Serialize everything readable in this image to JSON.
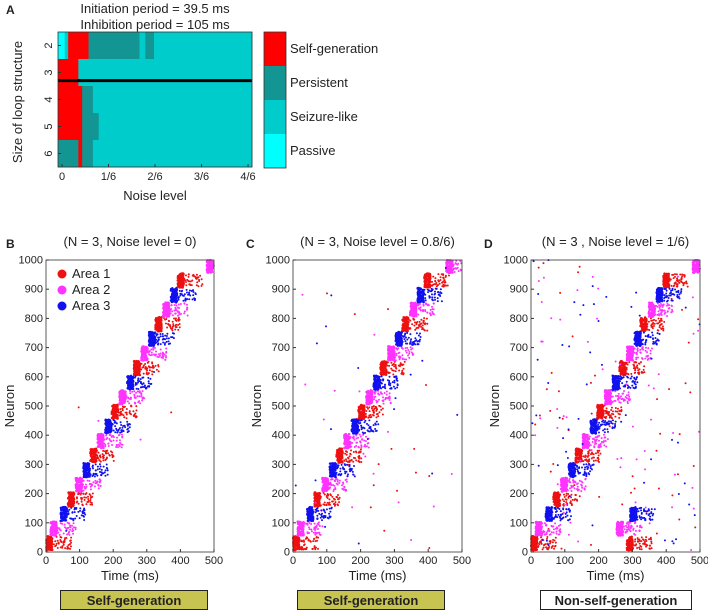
{
  "panel_a": {
    "label": "A",
    "title_line1": "Initiation period = 39.5 ms",
    "title_line2": "Inhibition period = 105 ms",
    "xlabel": "Noise level",
    "ylabel": "Size of loop structure",
    "x_ticks": [
      "0",
      "1/6",
      "2/6",
      "3/6",
      "4/6"
    ],
    "y_ticks": [
      "2",
      "3",
      "4",
      "5",
      "6"
    ],
    "legend": [
      {
        "label": "Self-generation",
        "color": "#ff0000"
      },
      {
        "label": "Persistent",
        "color": "#139593"
      },
      {
        "label": "Seizure-like",
        "color": "#00cccc"
      },
      {
        "label": "Passive",
        "color": "#00ffff"
      }
    ]
  },
  "raster_legend": [
    {
      "label": "Area 1",
      "color": "#ee1111"
    },
    {
      "label": "Area 2",
      "color": "#ff33ff"
    },
    {
      "label": "Area 3",
      "color": "#1111ee"
    }
  ],
  "panels": [
    {
      "label": "B",
      "title": "(N = 3, Noise level = 0)",
      "badge": "Self-generation",
      "ylabel": "Neuron",
      "xlabel": "Time (ms)"
    },
    {
      "label": "C",
      "title": "(N = 3, Noise level = 0.8/6)",
      "badge": "Self-generation",
      "ylabel": "Neuron",
      "xlabel": "Time (ms)"
    },
    {
      "label": "D",
      "title": "(N = 3 , Noise level = 1/6)",
      "badge": "Non-self-generation",
      "ylabel": "Neuron",
      "xlabel": "Time (ms)"
    }
  ],
  "chart_data": [
    {
      "type": "heatmap",
      "xlabel": "Noise level",
      "ylabel": "Size of loop structure",
      "x_range": [
        0,
        0.6667
      ],
      "y_categories": [
        2,
        3,
        4,
        5,
        6
      ],
      "categories": [
        "Self-generation",
        "Persistent",
        "Seizure-like",
        "Passive"
      ],
      "rows": [
        {
          "size": 2,
          "segments": [
            {
              "from": 0,
              "to": 0.023,
              "state": "Passive"
            },
            {
              "from": 0.023,
              "to": 0.035,
              "state": "Seizure-like"
            },
            {
              "from": 0.035,
              "to": 0.105,
              "state": "Self-generation"
            },
            {
              "from": 0.105,
              "to": 0.28,
              "state": "Persistent"
            },
            {
              "from": 0.28,
              "to": 0.3,
              "state": "Seizure-like"
            },
            {
              "from": 0.3,
              "to": 0.33,
              "state": "Persistent"
            },
            {
              "from": 0.33,
              "to": 0.6667,
              "state": "Seizure-like"
            }
          ]
        },
        {
          "size": 3,
          "segments": [
            {
              "from": 0,
              "to": 0.07,
              "state": "Self-generation"
            },
            {
              "from": 0.07,
              "to": 0.6667,
              "state": "Seizure-like"
            }
          ]
        },
        {
          "size": 4,
          "segments": [
            {
              "from": 0,
              "to": 0.083,
              "state": "Self-generation"
            },
            {
              "from": 0.083,
              "to": 0.12,
              "state": "Persistent"
            },
            {
              "from": 0.12,
              "to": 0.6667,
              "state": "Seizure-like"
            }
          ]
        },
        {
          "size": 5,
          "segments": [
            {
              "from": 0,
              "to": 0.083,
              "state": "Self-generation"
            },
            {
              "from": 0.083,
              "to": 0.14,
              "state": "Persistent"
            },
            {
              "from": 0.14,
              "to": 0.6667,
              "state": "Seizure-like"
            }
          ]
        },
        {
          "size": 6,
          "segments": [
            {
              "from": 0,
              "to": 0.07,
              "state": "Persistent"
            },
            {
              "from": 0.07,
              "to": 0.083,
              "state": "Self-generation"
            },
            {
              "from": 0.083,
              "to": 0.12,
              "state": "Persistent"
            },
            {
              "from": 0.12,
              "to": 0.6667,
              "state": "Seizure-like"
            }
          ]
        }
      ],
      "boundary_line": {
        "between_sizes": [
          3,
          4
        ],
        "x_from": 0,
        "x_to": 0.6667
      }
    },
    {
      "type": "scatter",
      "title": "(N = 3, Noise level = 0)",
      "xlabel": "Time (ms)",
      "ylabel": "Neuron",
      "xlim": [
        0,
        500
      ],
      "ylim": [
        0,
        1000
      ],
      "x_ticks": [
        0,
        100,
        200,
        300,
        400,
        500
      ],
      "y_ticks": [
        0,
        100,
        200,
        300,
        400,
        500,
        600,
        700,
        800,
        900,
        1000
      ],
      "series": [
        {
          "name": "Area 1",
          "clusters": [
            [
              7,
              30
            ],
            [
              72,
              180
            ],
            [
              138,
              330
            ],
            [
              202,
              480
            ],
            [
              268,
              630
            ],
            [
              332,
              780
            ],
            [
              398,
              930
            ]
          ]
        },
        {
          "name": "Area 2",
          "clusters": [
            [
              20,
              80
            ],
            [
              95,
              230
            ],
            [
              160,
              380
            ],
            [
              225,
              530
            ],
            [
              290,
              680
            ],
            [
              355,
              830
            ],
            [
              485,
              980
            ]
          ]
        },
        {
          "name": "Area 3",
          "clusters": [
            [
              50,
              130
            ],
            [
              118,
              280
            ],
            [
              183,
              430
            ],
            [
              248,
              580
            ],
            [
              313,
              730
            ],
            [
              378,
              880
            ]
          ]
        }
      ]
    },
    {
      "type": "scatter",
      "title": "(N = 3, Noise level = 0.8/6)",
      "xlabel": "Time (ms)",
      "ylabel": "Neuron",
      "xlim": [
        0,
        500
      ],
      "ylim": [
        0,
        1000
      ],
      "x_ticks": [
        0,
        100,
        200,
        300,
        400,
        500
      ],
      "y_ticks": [
        0,
        100,
        200,
        300,
        400,
        500,
        600,
        700,
        800,
        900,
        1000
      ],
      "series": [
        {
          "name": "Area 1",
          "clusters": [
            [
              7,
              30
            ],
            [
              70,
              180
            ],
            [
              135,
              330
            ],
            [
              200,
              480
            ],
            [
              265,
              630
            ],
            [
              330,
              780
            ],
            [
              395,
              930
            ]
          ]
        },
        {
          "name": "Area 2",
          "clusters": [
            [
              20,
              80
            ],
            [
              93,
              230
            ],
            [
              158,
              380
            ],
            [
              223,
              530
            ],
            [
              288,
              680
            ],
            [
              353,
              830
            ],
            [
              460,
              980
            ]
          ]
        },
        {
          "name": "Area 3",
          "clusters": [
            [
              48,
              130
            ],
            [
              115,
              280
            ],
            [
              180,
              430
            ],
            [
              245,
              580
            ],
            [
              310,
              730
            ],
            [
              375,
              880
            ]
          ]
        }
      ]
    },
    {
      "type": "scatter",
      "title": "(N = 3 , Noise level = 1/6)",
      "xlabel": "Time (ms)",
      "ylabel": "Neuron",
      "xlim": [
        0,
        500
      ],
      "ylim": [
        0,
        1000
      ],
      "x_ticks": [
        0,
        100,
        200,
        300,
        400,
        500
      ],
      "y_ticks": [
        0,
        100,
        200,
        300,
        400,
        500,
        600,
        700,
        800,
        900,
        1000
      ],
      "series": [
        {
          "name": "Area 1",
          "clusters": [
            [
              7,
              30
            ],
            [
              72,
              180
            ],
            [
              138,
              330
            ],
            [
              202,
              480
            ],
            [
              268,
              630
            ],
            [
              290,
              30
            ],
            [
              330,
              780
            ],
            [
              398,
              930
            ]
          ]
        },
        {
          "name": "Area 2",
          "clusters": [
            [
              20,
              80
            ],
            [
              95,
              230
            ],
            [
              160,
              380
            ],
            [
              225,
              530
            ],
            [
              260,
              80
            ],
            [
              290,
              680
            ],
            [
              355,
              830
            ],
            [
              485,
              980
            ]
          ]
        },
        {
          "name": "Area 3",
          "clusters": [
            [
              50,
              130
            ],
            [
              118,
              280
            ],
            [
              183,
              430
            ],
            [
              248,
              580
            ],
            [
              300,
              130
            ],
            [
              313,
              730
            ],
            [
              378,
              880
            ]
          ]
        }
      ]
    }
  ]
}
